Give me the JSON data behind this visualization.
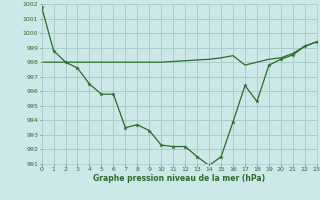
{
  "line1_x": [
    0,
    1,
    2,
    3,
    4,
    5,
    6,
    7,
    8,
    9,
    10,
    11,
    12,
    13,
    14,
    15,
    16,
    17,
    18,
    19,
    20,
    21,
    22,
    23
  ],
  "line1_y": [
    1001.8,
    998.8,
    998.0,
    997.6,
    996.5,
    995.8,
    995.8,
    993.5,
    993.7,
    993.3,
    992.3,
    992.2,
    992.2,
    991.5,
    990.9,
    991.5,
    993.9,
    996.4,
    995.3,
    997.8,
    998.2,
    998.5,
    999.1,
    999.4
  ],
  "line2_x": [
    0,
    1,
    2,
    3,
    4,
    5,
    6,
    7,
    8,
    9,
    10,
    11,
    12,
    13,
    14,
    15,
    16,
    17,
    18,
    19,
    20,
    21,
    22,
    23
  ],
  "line2_y": [
    998.0,
    998.0,
    998.0,
    998.0,
    998.0,
    998.0,
    998.0,
    998.0,
    998.0,
    998.0,
    998.0,
    998.05,
    998.1,
    998.15,
    998.2,
    998.3,
    998.45,
    997.8,
    998.0,
    998.2,
    998.3,
    998.6,
    999.1,
    999.4
  ],
  "line_color": "#2d6a2d",
  "bg_color": "#cce8e8",
  "grid_color": "#aacccc",
  "xlabel": "Graphe pression niveau de la mer (hPa)",
  "ylim": [
    991,
    1002
  ],
  "xlim": [
    0,
    23
  ],
  "yticks": [
    991,
    992,
    993,
    994,
    995,
    996,
    997,
    998,
    999,
    1000,
    1001,
    1002
  ],
  "xticks": [
    0,
    1,
    2,
    3,
    4,
    5,
    6,
    7,
    8,
    9,
    10,
    11,
    12,
    13,
    14,
    15,
    16,
    17,
    18,
    19,
    20,
    21,
    22,
    23
  ]
}
